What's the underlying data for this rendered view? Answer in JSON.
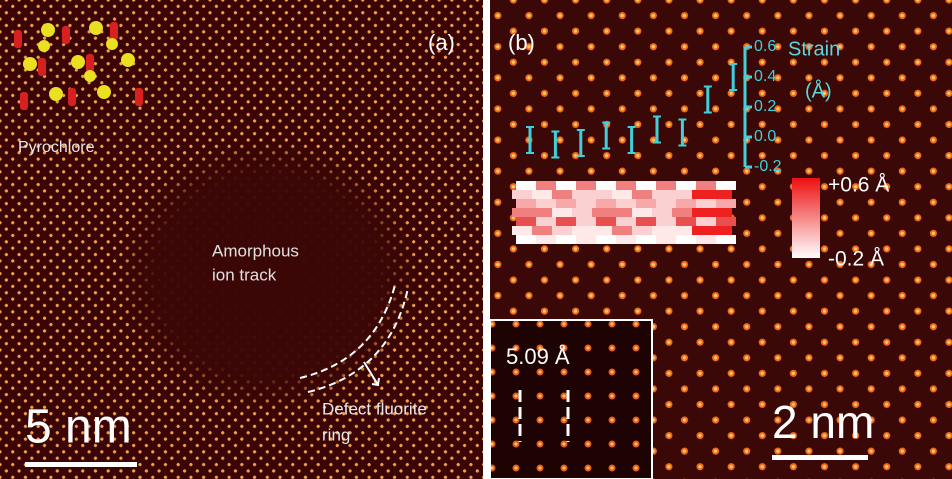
{
  "panel_a": {
    "label": "(a)",
    "structure": "Pyrochlore",
    "track_label": [
      "Amorphous",
      "ion track"
    ],
    "ring_label": [
      "Defect fluorite",
      "ring"
    ],
    "scale_bar": "5 nm"
  },
  "panel_b": {
    "label": "(b)",
    "strain_plot": {
      "title": [
        "Strain",
        "(Å)"
      ],
      "ylim": [
        -0.2,
        0.6
      ],
      "yticks": [
        0.6,
        0.4,
        0.2,
        {
          "value": 0,
          "label": "0.0"
        },
        -0.2
      ],
      "values": [
        -0.02,
        -0.05,
        -0.04,
        0.01,
        -0.02,
        0.05,
        0.03,
        0.25,
        0.4
      ]
    },
    "colorbar": {
      "max_label": "+0.6 Å",
      "min_label": "-0.2 Å"
    },
    "inset_label": "5.09 Å",
    "scale_bar": "2 nm"
  }
}
